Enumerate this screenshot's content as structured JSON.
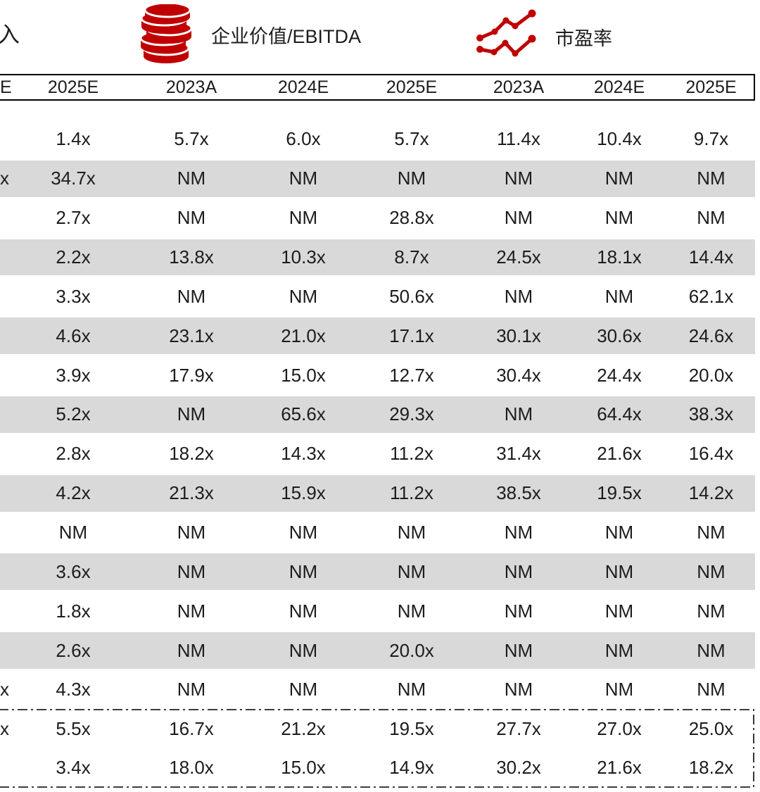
{
  "legend": {
    "left_fragment": "入",
    "ev_ebitda": {
      "icon": "coins-icon",
      "label": "企业价值/EBITDA"
    },
    "pe": {
      "icon": "trend-lines-icon",
      "label": "市盈率"
    },
    "accent_color": "#c00000"
  },
  "table": {
    "header": {
      "cells": [
        "E",
        "2025E",
        "2023A",
        "2024E",
        "2025E",
        "2023A",
        "2024E",
        "2025E"
      ]
    },
    "rows": [
      {
        "shaded": false,
        "cells": [
          "",
          "1.4x",
          "5.7x",
          "6.0x",
          "5.7x",
          "11.4x",
          "10.4x",
          "9.7x"
        ]
      },
      {
        "shaded": true,
        "cells": [
          "x",
          "34.7x",
          "NM",
          "NM",
          "NM",
          "NM",
          "NM",
          "NM"
        ]
      },
      {
        "shaded": false,
        "cells": [
          "",
          "2.7x",
          "NM",
          "NM",
          "28.8x",
          "NM",
          "NM",
          "NM"
        ]
      },
      {
        "shaded": true,
        "cells": [
          "",
          "2.2x",
          "13.8x",
          "10.3x",
          "8.7x",
          "24.5x",
          "18.1x",
          "14.4x"
        ]
      },
      {
        "shaded": false,
        "cells": [
          "",
          "3.3x",
          "NM",
          "NM",
          "50.6x",
          "NM",
          "NM",
          "62.1x"
        ]
      },
      {
        "shaded": true,
        "cells": [
          "",
          "4.6x",
          "23.1x",
          "21.0x",
          "17.1x",
          "30.1x",
          "30.6x",
          "24.6x"
        ]
      },
      {
        "shaded": false,
        "cells": [
          "",
          "3.9x",
          "17.9x",
          "15.0x",
          "12.7x",
          "30.4x",
          "24.4x",
          "20.0x"
        ]
      },
      {
        "shaded": true,
        "cells": [
          "",
          "5.2x",
          "NM",
          "65.6x",
          "29.3x",
          "NM",
          "64.4x",
          "38.3x"
        ]
      },
      {
        "shaded": false,
        "cells": [
          "",
          "2.8x",
          "18.2x",
          "14.3x",
          "11.2x",
          "31.4x",
          "21.6x",
          "16.4x"
        ]
      },
      {
        "shaded": true,
        "cells": [
          "",
          "4.2x",
          "21.3x",
          "15.9x",
          "11.2x",
          "38.5x",
          "19.5x",
          "14.2x"
        ]
      },
      {
        "shaded": false,
        "cells": [
          "",
          "NM",
          "NM",
          "NM",
          "NM",
          "NM",
          "NM",
          "NM"
        ]
      },
      {
        "shaded": true,
        "cells": [
          "",
          "3.6x",
          "NM",
          "NM",
          "NM",
          "NM",
          "NM",
          "NM"
        ]
      },
      {
        "shaded": false,
        "cells": [
          "",
          "1.8x",
          "NM",
          "NM",
          "NM",
          "NM",
          "NM",
          "NM"
        ]
      },
      {
        "shaded": true,
        "cells": [
          "",
          "2.6x",
          "NM",
          "NM",
          "20.0x",
          "NM",
          "NM",
          "NM"
        ]
      },
      {
        "shaded": false,
        "cells": [
          "x",
          "4.3x",
          "NM",
          "NM",
          "NM",
          "NM",
          "NM",
          "NM"
        ]
      }
    ],
    "summary_rows": [
      {
        "cells": [
          "x",
          "5.5x",
          "16.7x",
          "21.2x",
          "19.5x",
          "27.7x",
          "27.0x",
          "25.0x"
        ]
      },
      {
        "cells": [
          "",
          "3.4x",
          "18.0x",
          "15.0x",
          "14.9x",
          "30.2x",
          "21.6x",
          "18.2x"
        ]
      }
    ],
    "colors": {
      "stripe": "#d9d9d9",
      "text": "#1c1c1c",
      "border": "#000000"
    }
  }
}
